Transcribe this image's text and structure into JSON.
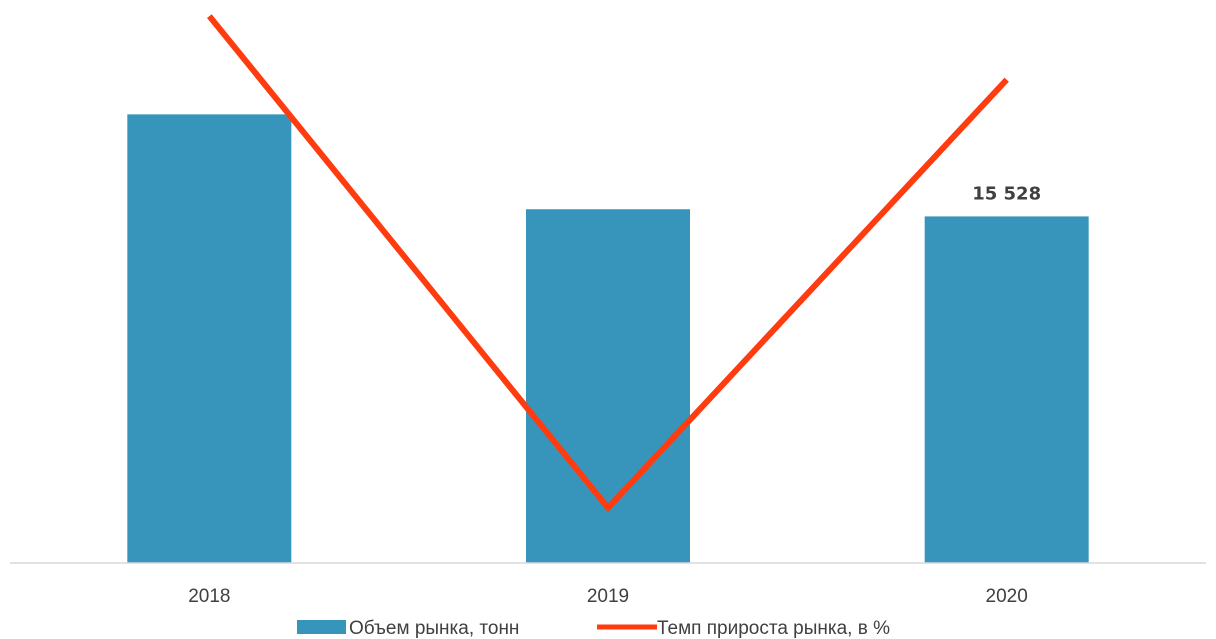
{
  "chart_data": {
    "type": "bar",
    "categories": [
      "2018",
      "2019",
      "2020"
    ],
    "series": [
      {
        "name": "Объем рынка, тонн",
        "kind": "bar",
        "color": "#3795bb",
        "values": [
          20100,
          15850,
          15528
        ]
      },
      {
        "name": "Темп прироста рынка, в %",
        "kind": "line",
        "color": "#ff3c0f",
        "values": [
          36.5,
          -30.0,
          27.9
        ]
      }
    ],
    "data_labels": [
      {
        "series": 0,
        "index": 2,
        "text": "15 528"
      }
    ],
    "title": "",
    "xlabel": "",
    "ylabel": "",
    "ylim_bars": [
      0,
      25000
    ],
    "ylim_line": [
      -33,
      38
    ],
    "grid": false,
    "legend_position": "bottom",
    "legend": [
      {
        "label": "Объем рынка, тонн",
        "marker": "box",
        "color": "#3795bb"
      },
      {
        "label": "Темп прироста рынка, в %",
        "marker": "line",
        "color": "#ff3c0f"
      }
    ]
  }
}
